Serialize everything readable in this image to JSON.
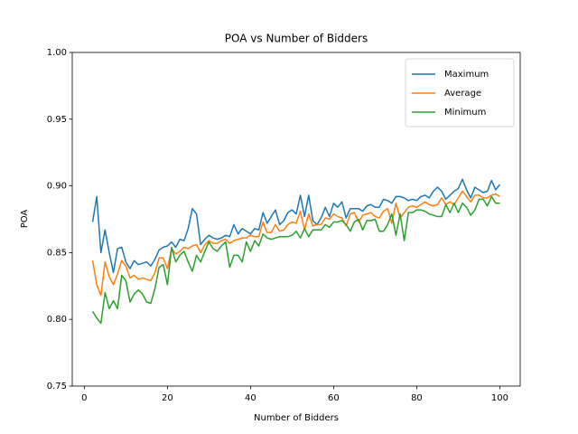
{
  "chart_data": {
    "type": "line",
    "title": "POA vs Number of Bidders",
    "x_label": "Number of Bidders",
    "y_label": "POA",
    "x": [
      2,
      3,
      4,
      5,
      6,
      7,
      8,
      9,
      10,
      11,
      12,
      13,
      14,
      15,
      16,
      17,
      18,
      19,
      20,
      21,
      22,
      23,
      24,
      25,
      26,
      27,
      28,
      29,
      30,
      31,
      32,
      33,
      34,
      35,
      36,
      37,
      38,
      39,
      40,
      41,
      42,
      43,
      44,
      45,
      46,
      47,
      48,
      49,
      50,
      51,
      52,
      53,
      54,
      55,
      56,
      57,
      58,
      59,
      60,
      61,
      62,
      63,
      64,
      65,
      66,
      67,
      68,
      69,
      70,
      71,
      72,
      73,
      74,
      75,
      76,
      77,
      78,
      79,
      80,
      81,
      82,
      83,
      84,
      85,
      86,
      87,
      88,
      89,
      90,
      91,
      92,
      93,
      94,
      95,
      96,
      97,
      98,
      99,
      100
    ],
    "series": [
      {
        "name": "Maximum",
        "color": "#1f77b4",
        "values": [
          0.873,
          0.892,
          0.85,
          0.867,
          0.85,
          0.835,
          0.853,
          0.854,
          0.843,
          0.838,
          0.844,
          0.841,
          0.842,
          0.843,
          0.84,
          0.845,
          0.852,
          0.854,
          0.855,
          0.858,
          0.854,
          0.86,
          0.859,
          0.868,
          0.883,
          0.879,
          0.856,
          0.86,
          0.863,
          0.861,
          0.86,
          0.861,
          0.863,
          0.862,
          0.871,
          0.864,
          0.868,
          0.866,
          0.864,
          0.868,
          0.867,
          0.88,
          0.872,
          0.877,
          0.882,
          0.871,
          0.874,
          0.88,
          0.882,
          0.879,
          0.893,
          0.877,
          0.893,
          0.874,
          0.871,
          0.876,
          0.884,
          0.877,
          0.887,
          0.884,
          0.888,
          0.876,
          0.883,
          0.883,
          0.883,
          0.881,
          0.885,
          0.886,
          0.884,
          0.884,
          0.89,
          0.889,
          0.887,
          0.892,
          0.892,
          0.891,
          0.889,
          0.89,
          0.889,
          0.892,
          0.893,
          0.891,
          0.896,
          0.899,
          0.896,
          0.89,
          0.893,
          0.896,
          0.898,
          0.905,
          0.897,
          0.891,
          0.899,
          0.897,
          0.895,
          0.896,
          0.904,
          0.897,
          0.901
        ]
      },
      {
        "name": "Average",
        "color": "#ff7f0e",
        "values": [
          0.844,
          0.826,
          0.818,
          0.843,
          0.832,
          0.826,
          0.834,
          0.844,
          0.84,
          0.831,
          0.833,
          0.83,
          0.831,
          0.83,
          0.829,
          0.835,
          0.846,
          0.846,
          0.838,
          0.853,
          0.849,
          0.851,
          0.854,
          0.853,
          0.855,
          0.856,
          0.85,
          0.856,
          0.859,
          0.857,
          0.857,
          0.859,
          0.86,
          0.857,
          0.859,
          0.86,
          0.861,
          0.861,
          0.863,
          0.862,
          0.862,
          0.873,
          0.865,
          0.865,
          0.871,
          0.866,
          0.867,
          0.871,
          0.873,
          0.872,
          0.881,
          0.867,
          0.879,
          0.87,
          0.871,
          0.871,
          0.876,
          0.875,
          0.879,
          0.877,
          0.876,
          0.87,
          0.879,
          0.88,
          0.873,
          0.878,
          0.879,
          0.88,
          0.877,
          0.876,
          0.881,
          0.883,
          0.872,
          0.887,
          0.876,
          0.88,
          0.884,
          0.885,
          0.884,
          0.886,
          0.888,
          0.886,
          0.885,
          0.886,
          0.891,
          0.886,
          0.888,
          0.886,
          0.891,
          0.896,
          0.892,
          0.888,
          0.893,
          0.893,
          0.891,
          0.891,
          0.893,
          0.894,
          0.892
        ]
      },
      {
        "name": "Minimum",
        "color": "#2ca02c",
        "values": [
          0.806,
          0.801,
          0.797,
          0.82,
          0.808,
          0.814,
          0.808,
          0.833,
          0.829,
          0.813,
          0.819,
          0.822,
          0.819,
          0.813,
          0.812,
          0.823,
          0.839,
          0.841,
          0.826,
          0.854,
          0.843,
          0.848,
          0.851,
          0.843,
          0.836,
          0.848,
          0.843,
          0.851,
          0.858,
          0.853,
          0.851,
          0.855,
          0.858,
          0.839,
          0.848,
          0.848,
          0.843,
          0.858,
          0.851,
          0.859,
          0.855,
          0.864,
          0.861,
          0.86,
          0.861,
          0.862,
          0.862,
          0.862,
          0.863,
          0.866,
          0.861,
          0.868,
          0.862,
          0.867,
          0.867,
          0.867,
          0.871,
          0.869,
          0.873,
          0.873,
          0.874,
          0.871,
          0.866,
          0.873,
          0.875,
          0.867,
          0.874,
          0.874,
          0.875,
          0.866,
          0.866,
          0.871,
          0.879,
          0.863,
          0.879,
          0.859,
          0.88,
          0.88,
          0.882,
          0.882,
          0.881,
          0.879,
          0.878,
          0.877,
          0.877,
          0.886,
          0.88,
          0.887,
          0.88,
          0.887,
          0.884,
          0.878,
          0.882,
          0.89,
          0.89,
          0.885,
          0.892,
          0.887,
          0.887
        ]
      }
    ],
    "xlim": [
      -2.9,
      104.9
    ],
    "ylim": [
      0.75,
      1.0
    ],
    "xticks": [
      0,
      20,
      40,
      60,
      80,
      100
    ],
    "yticks": [
      {
        "value": 0.75,
        "label": "0.75"
      },
      {
        "value": 0.8,
        "label": "0.80"
      },
      {
        "value": 0.85,
        "label": "0.85"
      },
      {
        "value": 0.9,
        "label": "0.90"
      },
      {
        "value": 0.95,
        "label": "0.95"
      },
      {
        "value": 1.0,
        "label": "1.00"
      }
    ],
    "legend": "upper right",
    "grid": false
  }
}
